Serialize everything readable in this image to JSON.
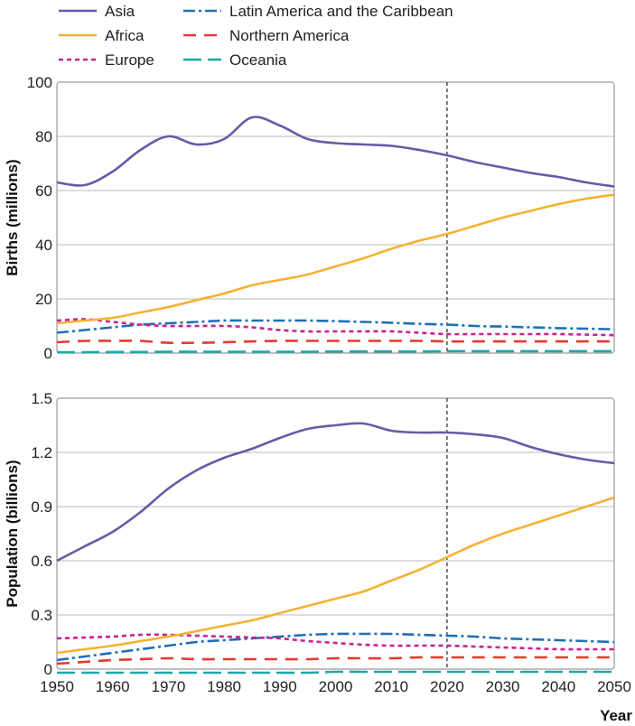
{
  "chart_data": [
    {
      "type": "line",
      "panel": "top",
      "ylabel": "Births (millions)",
      "xlabel": "",
      "ylim": [
        0,
        100
      ],
      "yticks": [
        "0",
        "20",
        "40",
        "60",
        "80",
        "100"
      ],
      "xlim": [
        1950,
        2050
      ],
      "xticks": [
        "1950",
        "1960",
        "1970",
        "1980",
        "1990",
        "2000",
        "2010",
        "2020",
        "2030",
        "2040",
        "2050"
      ],
      "vline_x": 2020,
      "x": [
        1950,
        1955,
        1960,
        1965,
        1970,
        1975,
        1980,
        1985,
        1990,
        1995,
        2000,
        2005,
        2010,
        2015,
        2020,
        2025,
        2030,
        2035,
        2040,
        2045,
        2050
      ],
      "series": [
        {
          "name": "Asia",
          "values": [
            63,
            62,
            67,
            75,
            80,
            77,
            79,
            87,
            84,
            79,
            77.5,
            77,
            76.5,
            75,
            73,
            70.5,
            68.5,
            66.5,
            65,
            63,
            61.5
          ]
        },
        {
          "name": "Africa",
          "values": [
            11,
            12,
            13,
            15,
            17,
            19.5,
            22,
            25,
            27,
            29,
            32,
            35,
            38.5,
            41.5,
            44,
            47,
            50,
            52.5,
            55,
            57,
            58.5
          ]
        },
        {
          "name": "Europe",
          "values": [
            12,
            12.5,
            11.5,
            10.5,
            10,
            10,
            10,
            9.5,
            8.5,
            8,
            8,
            8,
            8,
            7.5,
            7,
            7,
            7,
            7,
            7,
            6.8,
            6.6
          ]
        },
        {
          "name": "Latin America and the Caribbean",
          "values": [
            7.5,
            8.5,
            9.5,
            10.5,
            11,
            11.5,
            12,
            12,
            12,
            12,
            11.8,
            11.5,
            11.2,
            10.8,
            10.5,
            10,
            9.8,
            9.5,
            9.2,
            9,
            8.8
          ]
        },
        {
          "name": "Northern America",
          "values": [
            4,
            4.5,
            4.5,
            4.5,
            3.8,
            3.8,
            4,
            4.3,
            4.5,
            4.5,
            4.5,
            4.5,
            4.5,
            4.5,
            4.3,
            4.3,
            4.3,
            4.3,
            4.3,
            4.3,
            4.3
          ]
        },
        {
          "name": "Oceania",
          "values": [
            0.3,
            0.3,
            0.4,
            0.4,
            0.5,
            0.5,
            0.5,
            0.5,
            0.5,
            0.5,
            0.6,
            0.6,
            0.6,
            0.6,
            0.7,
            0.7,
            0.7,
            0.7,
            0.7,
            0.7,
            0.7
          ]
        }
      ]
    },
    {
      "type": "line",
      "panel": "bottom",
      "ylabel": "Population (billions)",
      "xlabel": "Year",
      "ylim": [
        0,
        1.5
      ],
      "yticks": [
        "0",
        "0.3",
        "0.6",
        "0.9",
        "1.2",
        "1.5"
      ],
      "xlim": [
        1950,
        2050
      ],
      "xticks": [
        "1950",
        "1960",
        "1970",
        "1980",
        "1990",
        "2000",
        "2010",
        "2020",
        "2030",
        "2040",
        "2050"
      ],
      "vline_x": 2020,
      "x": [
        1950,
        1955,
        1960,
        1965,
        1970,
        1975,
        1980,
        1985,
        1990,
        1995,
        2000,
        2005,
        2010,
        2015,
        2020,
        2025,
        2030,
        2035,
        2040,
        2045,
        2050
      ],
      "series": [
        {
          "name": "Asia",
          "values": [
            0.6,
            0.68,
            0.76,
            0.87,
            1.0,
            1.1,
            1.17,
            1.22,
            1.28,
            1.33,
            1.35,
            1.36,
            1.32,
            1.31,
            1.31,
            1.3,
            1.28,
            1.23,
            1.19,
            1.16,
            1.14
          ]
        },
        {
          "name": "Africa",
          "values": [
            0.09,
            0.11,
            0.13,
            0.155,
            0.18,
            0.21,
            0.24,
            0.27,
            0.31,
            0.35,
            0.39,
            0.43,
            0.49,
            0.55,
            0.62,
            0.69,
            0.75,
            0.8,
            0.85,
            0.9,
            0.95
          ]
        },
        {
          "name": "Europe",
          "values": [
            0.17,
            0.175,
            0.18,
            0.19,
            0.19,
            0.185,
            0.18,
            0.175,
            0.17,
            0.155,
            0.145,
            0.135,
            0.13,
            0.13,
            0.13,
            0.125,
            0.12,
            0.115,
            0.11,
            0.11,
            0.11
          ]
        },
        {
          "name": "Latin America and the Caribbean",
          "values": [
            0.05,
            0.07,
            0.09,
            0.11,
            0.13,
            0.15,
            0.16,
            0.17,
            0.18,
            0.19,
            0.195,
            0.195,
            0.195,
            0.19,
            0.185,
            0.18,
            0.17,
            0.165,
            0.16,
            0.155,
            0.15
          ]
        },
        {
          "name": "Northern America",
          "values": [
            0.03,
            0.04,
            0.05,
            0.055,
            0.06,
            0.055,
            0.055,
            0.055,
            0.055,
            0.055,
            0.06,
            0.06,
            0.06,
            0.065,
            0.065,
            0.065,
            0.065,
            0.065,
            0.065,
            0.065,
            0.065
          ]
        },
        {
          "name": "Oceania",
          "values": [
            -0.02,
            -0.02,
            -0.02,
            -0.02,
            -0.02,
            -0.02,
            -0.02,
            -0.02,
            -0.02,
            -0.02,
            -0.015,
            -0.015,
            -0.015,
            -0.015,
            -0.015,
            -0.015,
            -0.015,
            -0.015,
            -0.015,
            -0.015,
            -0.015
          ]
        }
      ]
    }
  ],
  "legend": [
    {
      "name": "Asia",
      "color": "#6a59a8",
      "dash": "solid"
    },
    {
      "name": "Africa",
      "color": "#f5b233",
      "dash": "solid"
    },
    {
      "name": "Europe",
      "color": "#c8238e",
      "dash": "dotted"
    },
    {
      "name": "Latin America and the Caribbean",
      "color": "#1f6fb5",
      "dash": "dashdot"
    },
    {
      "name": "Northern America",
      "color": "#e53a2e",
      "dash": "dashed"
    },
    {
      "name": "Oceania",
      "color": "#1fa8a8",
      "dash": "longdash"
    }
  ],
  "colors": {
    "grid": "#bbbbbb",
    "frame": "#999999",
    "vline": "#333333"
  }
}
